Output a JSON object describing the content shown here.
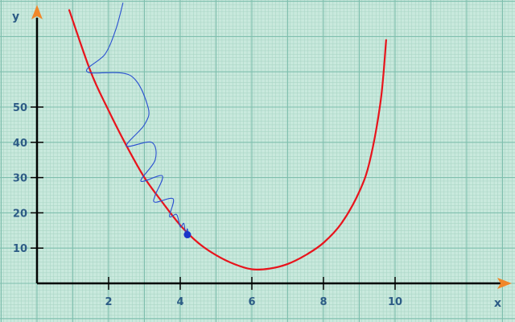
{
  "chart_data": {
    "type": "line",
    "title": "",
    "xlabel": "x",
    "ylabel": "y",
    "xlim": [
      0,
      13.5
    ],
    "ylim": [
      0,
      80
    ],
    "grid": true,
    "x_ticks": [
      {
        "value": 2,
        "label": "2"
      },
      {
        "value": 4,
        "label": "4"
      },
      {
        "value": 6,
        "label": "6"
      },
      {
        "value": 8,
        "label": "8"
      },
      {
        "value": 10,
        "label": "10"
      }
    ],
    "y_ticks": [
      {
        "value": 10,
        "label": "10"
      },
      {
        "value": 20,
        "label": "20"
      },
      {
        "value": 30,
        "label": "30"
      },
      {
        "value": 40,
        "label": "40"
      },
      {
        "value": 50,
        "label": "50"
      }
    ],
    "series": [
      {
        "color": "#e8141c",
        "style": "smooth",
        "points": [
          [
            0.9,
            77.5
          ],
          [
            1.5,
            60
          ],
          [
            2.0,
            49
          ],
          [
            2.5,
            39
          ],
          [
            3.0,
            30
          ],
          [
            3.5,
            23
          ],
          [
            4.0,
            16.5
          ],
          [
            4.5,
            11.5
          ],
          [
            5.0,
            8
          ],
          [
            5.5,
            5.5
          ],
          [
            6.0,
            4
          ],
          [
            6.5,
            4.2
          ],
          [
            7.0,
            5.5
          ],
          [
            7.5,
            8
          ],
          [
            8.0,
            11.5
          ],
          [
            8.5,
            17
          ],
          [
            9.0,
            26
          ],
          [
            9.3,
            35
          ],
          [
            9.6,
            52
          ],
          [
            9.75,
            69
          ]
        ]
      },
      {
        "color": "#2a4fd1",
        "style": "path",
        "points": [
          [
            2.4,
            79.5
          ],
          [
            2.2,
            72
          ],
          [
            1.9,
            65
          ],
          [
            1.4,
            60
          ],
          [
            2.6,
            59
          ],
          [
            3.1,
            50
          ],
          [
            3.0,
            45
          ],
          [
            2.5,
            39
          ],
          [
            3.2,
            40
          ],
          [
            3.3,
            35
          ],
          [
            2.9,
            29
          ],
          [
            3.5,
            30.5
          ],
          [
            3.3,
            25
          ],
          [
            3.3,
            23
          ],
          [
            3.8,
            24
          ],
          [
            3.7,
            19
          ],
          [
            3.9,
            19.5
          ],
          [
            4.0,
            16
          ],
          [
            4.1,
            17
          ],
          [
            4.15,
            14
          ],
          [
            4.2,
            15.5
          ],
          [
            4.22,
            13.8
          ]
        ]
      }
    ],
    "points": [
      {
        "x": 4.2,
        "y": 13.8,
        "color": "#1a35c8"
      }
    ]
  }
}
